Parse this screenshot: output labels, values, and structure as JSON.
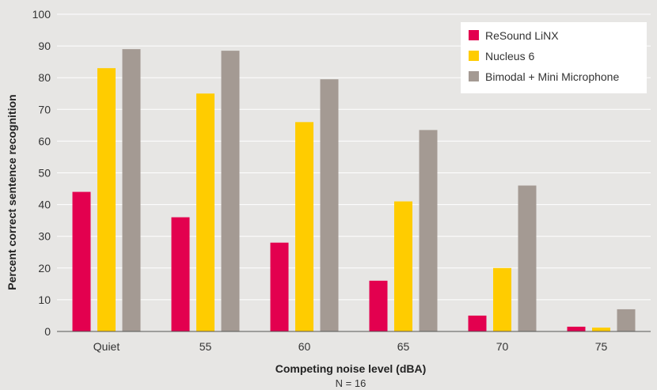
{
  "chart_data": {
    "type": "bar",
    "categories": [
      "Quiet",
      "55",
      "60",
      "65",
      "70",
      "75"
    ],
    "series": [
      {
        "name": "ReSound LiNX",
        "color": "#e3004f",
        "values": [
          44,
          36,
          28,
          16,
          5,
          1.5
        ]
      },
      {
        "name": "Nucleus 6",
        "color": "#ffcc00",
        "values": [
          83,
          75,
          66,
          41,
          20,
          1.2
        ]
      },
      {
        "name": "Bimodal + Mini Microphone",
        "color": "#a49a93",
        "values": [
          89,
          88.5,
          79.5,
          63.5,
          46,
          7
        ]
      }
    ],
    "xlabel": "Competing noise level (dBA)",
    "note": "N = 16",
    "ylabel": "Percent correct sentence recognition",
    "ylim": [
      0,
      100
    ],
    "yticks": [
      "0",
      "10",
      "20",
      "30",
      "40",
      "50",
      "60",
      "70",
      "80",
      "90",
      "100"
    ],
    "grid": true,
    "legend": "top-right"
  }
}
